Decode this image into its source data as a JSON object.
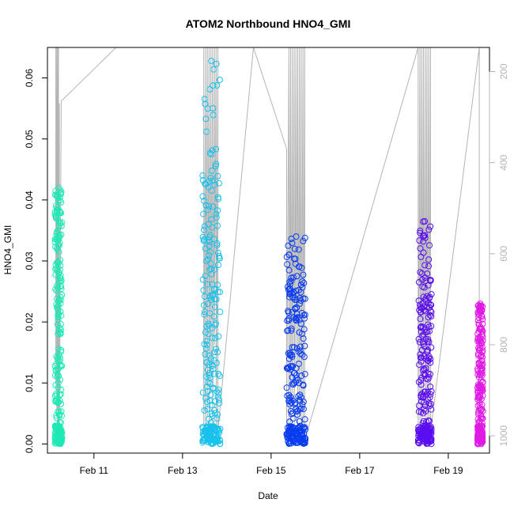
{
  "chart_data": {
    "type": "scatter",
    "title": "ATOM2 Northbound HNO4_GMI",
    "xlabel": "Date",
    "ylabel": "HNO4_GMI",
    "x_unit": "days (February)",
    "xlim": [
      9.95,
      19.93
    ],
    "ylim": [
      -0.0015,
      0.065
    ],
    "x_ticks": [
      {
        "value": 11,
        "label": "Feb 11"
      },
      {
        "value": 13,
        "label": "Feb 13"
      },
      {
        "value": 15,
        "label": "Feb 15"
      },
      {
        "value": 17,
        "label": "Feb 17"
      },
      {
        "value": 19,
        "label": "Feb 19"
      }
    ],
    "y_ticks": [
      {
        "value": 0.0,
        "label": "0.00"
      },
      {
        "value": 0.01,
        "label": "0.01"
      },
      {
        "value": 0.02,
        "label": "0.02"
      },
      {
        "value": 0.03,
        "label": "0.03"
      },
      {
        "value": 0.04,
        "label": "0.04"
      },
      {
        "value": 0.05,
        "label": "0.05"
      },
      {
        "value": 0.06,
        "label": "0.06"
      }
    ],
    "secondary_axis": {
      "description": "pressure (altitude profile) shown as grey line",
      "ylim": [
        1038,
        147
      ],
      "color": "#b4b4b4",
      "ticks": [
        {
          "value": 200,
          "label": "200"
        },
        {
          "value": 400,
          "label": "400"
        },
        {
          "value": 600,
          "label": "600"
        },
        {
          "value": 800,
          "label": "800"
        },
        {
          "value": 1000,
          "label": "1000"
        }
      ]
    },
    "grid": false,
    "legend": "none",
    "series": [
      {
        "name": "",
        "color": "#1de9b6",
        "x_range": [
          10.12,
          10.28
        ],
        "y_max": 0.042,
        "y_min": 0.0,
        "dense_top": 0.036,
        "seed": 11
      },
      {
        "name": "",
        "color": "#17c2ec",
        "x_range": [
          13.45,
          13.85
        ],
        "y_max": 0.0628,
        "y_min": 0.0,
        "dense_top": 0.045,
        "seed": 23
      },
      {
        "name": "",
        "color": "#0a3cf0",
        "x_range": [
          15.35,
          15.78
        ],
        "y_max": 0.034,
        "y_min": 0.0,
        "dense_top": 0.027,
        "seed": 37
      },
      {
        "name": "",
        "color": "#5a0ef0",
        "x_range": [
          18.32,
          18.62
        ],
        "y_max": 0.0365,
        "y_min": 0.0,
        "dense_top": 0.027,
        "seed": 41
      },
      {
        "name": "",
        "color": "#e01ae6",
        "x_range": [
          19.66,
          19.78
        ],
        "y_max": 0.023,
        "y_min": 0.0,
        "dense_top": 0.021,
        "seed": 53
      }
    ],
    "pressure_profile": [
      [
        10.14,
        147
      ],
      [
        10.14,
        880
      ],
      [
        10.16,
        147
      ],
      [
        10.16,
        940
      ],
      [
        10.18,
        147
      ],
      [
        10.18,
        1000
      ],
      [
        10.2,
        147
      ],
      [
        10.2,
        1010
      ],
      [
        10.22,
        270
      ],
      [
        10.22,
        1005
      ],
      [
        10.26,
        265
      ],
      [
        11.5,
        147
      ],
      [
        13.48,
        147
      ],
      [
        13.48,
        1000
      ],
      [
        13.52,
        147
      ],
      [
        13.52,
        980
      ],
      [
        13.56,
        147
      ],
      [
        13.56,
        960
      ],
      [
        13.6,
        147
      ],
      [
        13.6,
        1000
      ],
      [
        13.64,
        147
      ],
      [
        13.64,
        900
      ],
      [
        13.68,
        147
      ],
      [
        13.68,
        1000
      ],
      [
        13.72,
        147
      ],
      [
        13.72,
        800
      ],
      [
        13.76,
        147
      ],
      [
        13.76,
        1010
      ],
      [
        13.8,
        147
      ],
      [
        13.8,
        990
      ],
      [
        14.6,
        147
      ],
      [
        15.35,
        370
      ],
      [
        15.35,
        1000
      ],
      [
        15.4,
        147
      ],
      [
        15.4,
        980
      ],
      [
        15.44,
        147
      ],
      [
        15.44,
        1000
      ],
      [
        15.48,
        147
      ],
      [
        15.48,
        920
      ],
      [
        15.52,
        147
      ],
      [
        15.52,
        1010
      ],
      [
        15.56,
        147
      ],
      [
        15.56,
        860
      ],
      [
        15.6,
        147
      ],
      [
        15.6,
        1000
      ],
      [
        15.64,
        147
      ],
      [
        15.64,
        960
      ],
      [
        15.68,
        147
      ],
      [
        15.68,
        1005
      ],
      [
        15.72,
        147
      ],
      [
        15.72,
        990
      ],
      [
        15.76,
        147
      ],
      [
        15.76,
        1010
      ],
      [
        18.32,
        147
      ],
      [
        18.32,
        1000
      ],
      [
        18.36,
        147
      ],
      [
        18.36,
        980
      ],
      [
        18.4,
        147
      ],
      [
        18.4,
        1010
      ],
      [
        18.44,
        147
      ],
      [
        18.44,
        940
      ],
      [
        18.48,
        147
      ],
      [
        18.48,
        1000
      ],
      [
        18.52,
        147
      ],
      [
        18.52,
        960
      ],
      [
        18.56,
        147
      ],
      [
        18.56,
        1010
      ],
      [
        18.6,
        147
      ],
      [
        18.6,
        990
      ],
      [
        19.7,
        147
      ],
      [
        19.7,
        1010
      ]
    ]
  }
}
